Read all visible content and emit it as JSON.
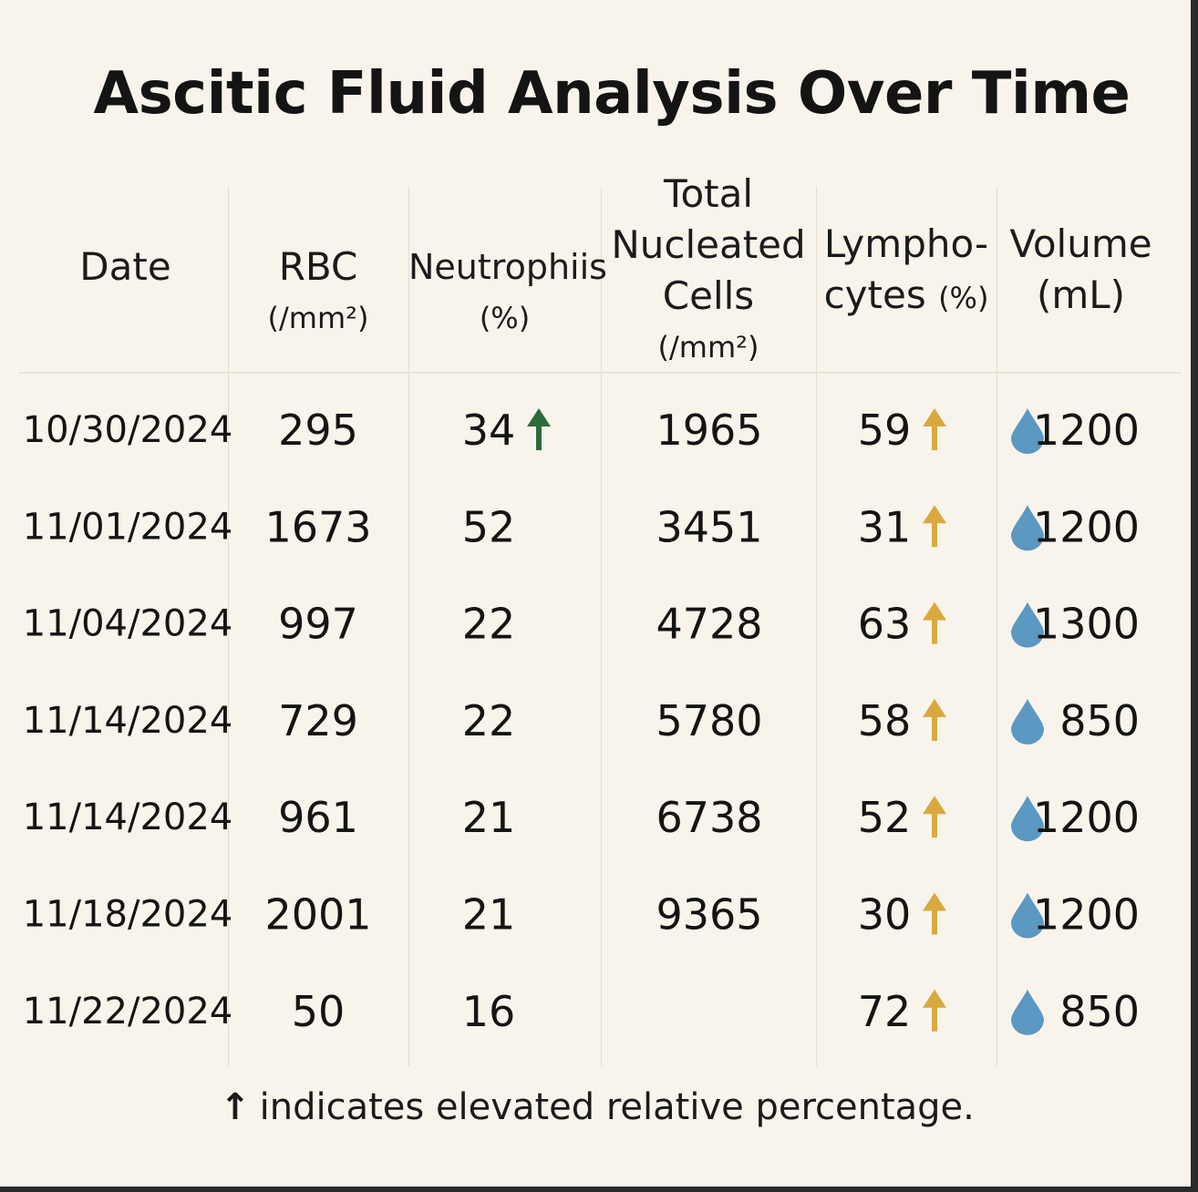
{
  "title": "Ascitic Fluid Analysis Over Time",
  "headers": {
    "date": "Date",
    "rbc_title": "RBC",
    "rbc_unit": "(/mm²)",
    "neutrophils_title": "Neutrophiis",
    "neutrophils_unit": "(%)",
    "tnc_line1": "Total",
    "tnc_line2": "Nucleated",
    "tnc_line3": "Cells",
    "tnc_unit": "(/mm²)",
    "lympho_line1": "Lympho-",
    "lympho_line2": "cytes",
    "lympho_unit": "(%)",
    "volume_title": "Volume",
    "volume_unit": "(mL)"
  },
  "icons": {
    "neutrophil_arrow": "arrow-up-icon",
    "lymphocyte_arrow": "arrow-up-icon",
    "volume_drop": "water-drop-icon"
  },
  "colors": {
    "neutrophil_arrow": "#2e6b3a",
    "lymphocyte_arrow": "#d9a93f",
    "drop": "#5b98c2"
  },
  "chart_data": {
    "type": "table",
    "title": "Ascitic Fluid Analysis Over Time",
    "columns": [
      "Date",
      "RBC (/mm²)",
      "Neutrophiis (%)",
      "Total Nucleated Cells (/mm²)",
      "Lympho-cytes (%)",
      "Volume (mL)"
    ],
    "rows": [
      {
        "date": "10/30/2024",
        "rbc": "295",
        "neutrophils": "34",
        "neutrophils_elevated": true,
        "tnc": "1965",
        "lymphocytes": "59",
        "lymphocytes_elevated": true,
        "volume": "1200"
      },
      {
        "date": "11/01/2024",
        "rbc": "1673",
        "neutrophils": "52",
        "neutrophils_elevated": false,
        "tnc": "3451",
        "lymphocytes": "31",
        "lymphocytes_elevated": true,
        "volume": "1200"
      },
      {
        "date": "11/04/2024",
        "rbc": "997",
        "neutrophils": "22",
        "neutrophils_elevated": false,
        "tnc": "4728",
        "lymphocytes": "63",
        "lymphocytes_elevated": true,
        "volume": "1300"
      },
      {
        "date": "11/14/2024",
        "rbc": "729",
        "neutrophils": "22",
        "neutrophils_elevated": false,
        "tnc": "5780",
        "lymphocytes": "58",
        "lymphocytes_elevated": true,
        "volume": "850"
      },
      {
        "date": "11/14/2024",
        "rbc": "961",
        "neutrophils": "21",
        "neutrophils_elevated": false,
        "tnc": "6738",
        "lymphocytes": "52",
        "lymphocytes_elevated": true,
        "volume": "1200"
      },
      {
        "date": "11/18/2024",
        "rbc": "2001",
        "neutrophils": "21",
        "neutrophils_elevated": false,
        "tnc": "9365",
        "lymphocytes": "30",
        "lymphocytes_elevated": true,
        "volume": "1200"
      },
      {
        "date": "11/22/2024",
        "rbc": "50",
        "neutrophils": "16",
        "neutrophils_elevated": false,
        "tnc": "",
        "lymphocytes": "72",
        "lymphocytes_elevated": true,
        "volume": "850"
      }
    ]
  },
  "footnote": {
    "symbol": "↑",
    "text": "indicates elevated relative percentage."
  }
}
